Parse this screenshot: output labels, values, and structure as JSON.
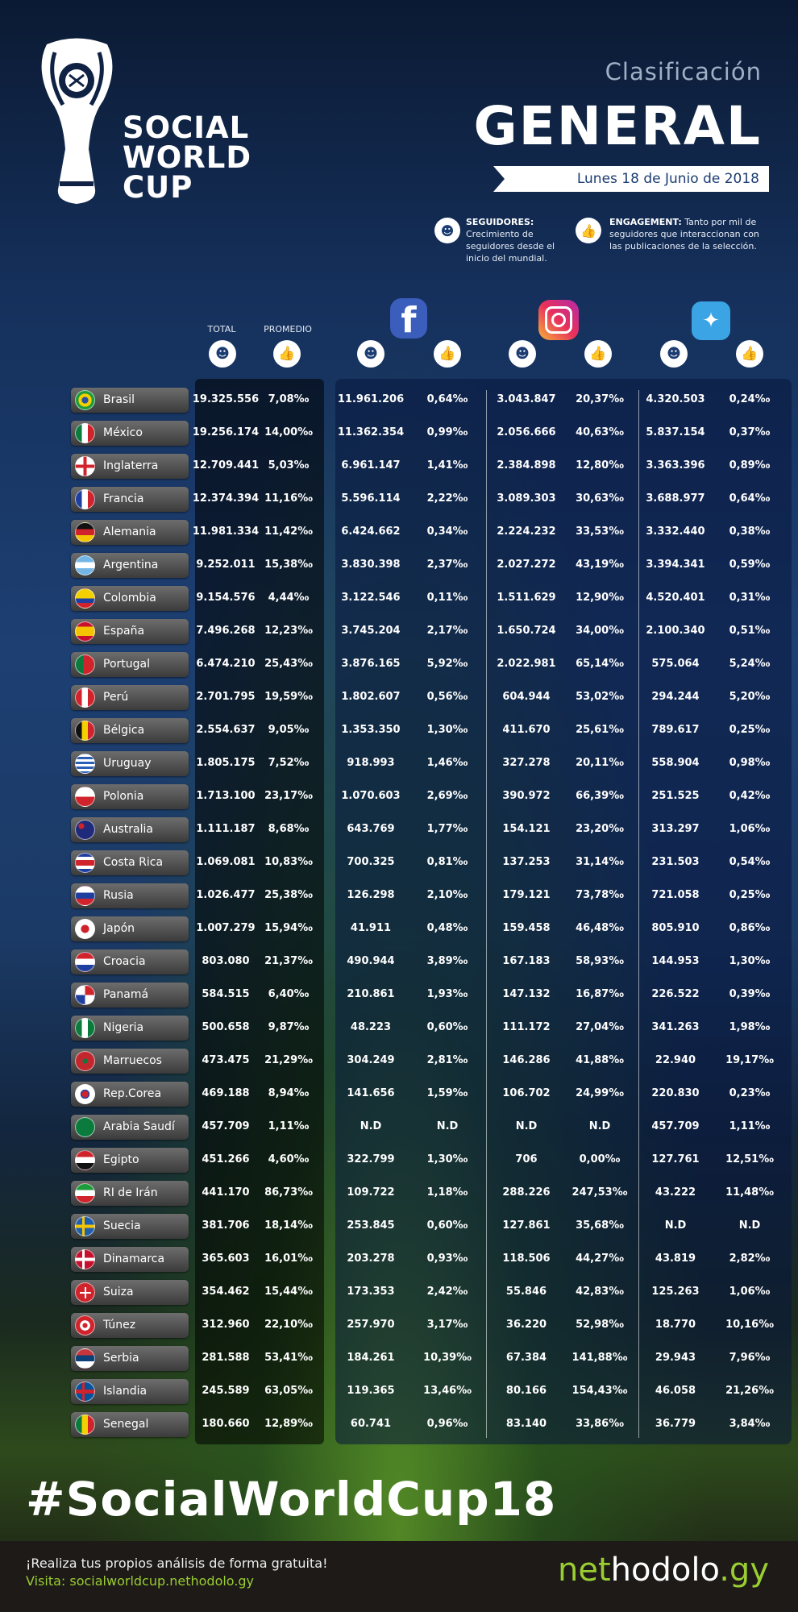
{
  "header": {
    "brand": [
      "SOCIAL",
      "WORLD",
      "CUP"
    ],
    "clasificacion": "Clasificación",
    "general": "GENERAL",
    "date": "Lunes 18 de Junio de 2018"
  },
  "legend": {
    "seguidores_title": "SEGUIDORES:",
    "seguidores_text": "Crecimiento de seguidores desde el inicio del mundial.",
    "engagement_title": "ENGAGEMENT:",
    "engagement_text": "Tanto por mil de seguidores que interaccionan con las publicaciones de la selección."
  },
  "columns": {
    "total": "TOTAL",
    "promedio": "PROMEDIO"
  },
  "icons": {
    "followers": "people-icon",
    "engagement": "thumbs-up-icon",
    "facebook": "facebook-logo",
    "instagram": "instagram-logo",
    "twitter": "twitter-logo"
  },
  "colors": {
    "accent_green": "#9acd32",
    "navy": "#1b3c72"
  },
  "rows": [
    {
      "country": "Brasil",
      "flag": "br",
      "total": "19.325.556",
      "prom": "7,08‰",
      "fb": "11.961.206",
      "fbe": "0,64‰",
      "ig": "3.043.847",
      "ige": "20,37‰",
      "tw": "4.320.503",
      "twe": "0,24‰"
    },
    {
      "country": "México",
      "flag": "mx",
      "total": "19.256.174",
      "prom": "14,00‰",
      "fb": "11.362.354",
      "fbe": "0,99‰",
      "ig": "2.056.666",
      "ige": "40,63‰",
      "tw": "5.837.154",
      "twe": "0,37‰"
    },
    {
      "country": "Inglaterra",
      "flag": "en",
      "total": "12.709.441",
      "prom": "5,03‰",
      "fb": "6.961.147",
      "fbe": "1,41‰",
      "ig": "2.384.898",
      "ige": "12,80‰",
      "tw": "3.363.396",
      "twe": "0,89‰"
    },
    {
      "country": "Francia",
      "flag": "fr",
      "total": "12.374.394",
      "prom": "11,16‰",
      "fb": "5.596.114",
      "fbe": "2,22‰",
      "ig": "3.089.303",
      "ige": "30,63‰",
      "tw": "3.688.977",
      "twe": "0,64‰"
    },
    {
      "country": "Alemania",
      "flag": "de",
      "total": "11.981.334",
      "prom": "11,42‰",
      "fb": "6.424.662",
      "fbe": "0,34‰",
      "ig": "2.224.232",
      "ige": "33,53‰",
      "tw": "3.332.440",
      "twe": "0,38‰"
    },
    {
      "country": "Argentina",
      "flag": "ar",
      "total": "9.252.011",
      "prom": "15,38‰",
      "fb": "3.830.398",
      "fbe": "2,37‰",
      "ig": "2.027.272",
      "ige": "43,19‰",
      "tw": "3.394.341",
      "twe": "0,59‰"
    },
    {
      "country": "Colombia",
      "flag": "co",
      "total": "9.154.576",
      "prom": "4,44‰",
      "fb": "3.122.546",
      "fbe": "0,11‰",
      "ig": "1.511.629",
      "ige": "12,90‰",
      "tw": "4.520.401",
      "twe": "0,31‰"
    },
    {
      "country": "España",
      "flag": "es",
      "total": "7.496.268",
      "prom": "12,23‰",
      "fb": "3.745.204",
      "fbe": "2,17‰",
      "ig": "1.650.724",
      "ige": "34,00‰",
      "tw": "2.100.340",
      "twe": "0,51‰"
    },
    {
      "country": "Portugal",
      "flag": "pt",
      "total": "6.474.210",
      "prom": "25,43‰",
      "fb": "3.876.165",
      "fbe": "5,92‰",
      "ig": "2.022.981",
      "ige": "65,14‰",
      "tw": "575.064",
      "twe": "5,24‰"
    },
    {
      "country": "Perú",
      "flag": "pe",
      "total": "2.701.795",
      "prom": "19,59‰",
      "fb": "1.802.607",
      "fbe": "0,56‰",
      "ig": "604.944",
      "ige": "53,02‰",
      "tw": "294.244",
      "twe": "5,20‰"
    },
    {
      "country": "Bélgica",
      "flag": "be",
      "total": "2.554.637",
      "prom": "9,05‰",
      "fb": "1.353.350",
      "fbe": "1,30‰",
      "ig": "411.670",
      "ige": "25,61‰",
      "tw": "789.617",
      "twe": "0,25‰"
    },
    {
      "country": "Uruguay",
      "flag": "uy",
      "total": "1.805.175",
      "prom": "7,52‰",
      "fb": "918.993",
      "fbe": "1,46‰",
      "ig": "327.278",
      "ige": "20,11‰",
      "tw": "558.904",
      "twe": "0,98‰"
    },
    {
      "country": "Polonia",
      "flag": "pl",
      "total": "1.713.100",
      "prom": "23,17‰",
      "fb": "1.070.603",
      "fbe": "2,69‰",
      "ig": "390.972",
      "ige": "66,39‰",
      "tw": "251.525",
      "twe": "0,42‰"
    },
    {
      "country": "Australia",
      "flag": "au",
      "total": "1.111.187",
      "prom": "8,68‰",
      "fb": "643.769",
      "fbe": "1,77‰",
      "ig": "154.121",
      "ige": "23,20‰",
      "tw": "313.297",
      "twe": "1,06‰"
    },
    {
      "country": "Costa Rica",
      "flag": "cr",
      "total": "1.069.081",
      "prom": "10,83‰",
      "fb": "700.325",
      "fbe": "0,81‰",
      "ig": "137.253",
      "ige": "31,14‰",
      "tw": "231.503",
      "twe": "0,54‰"
    },
    {
      "country": "Rusia",
      "flag": "ru",
      "total": "1.026.477",
      "prom": "25,38‰",
      "fb": "126.298",
      "fbe": "2,10‰",
      "ig": "179.121",
      "ige": "73,78‰",
      "tw": "721.058",
      "twe": "0,25‰"
    },
    {
      "country": "Japón",
      "flag": "jp",
      "total": "1.007.279",
      "prom": "15,94‰",
      "fb": "41.911",
      "fbe": "0,48‰",
      "ig": "159.458",
      "ige": "46,48‰",
      "tw": "805.910",
      "twe": "0,86‰"
    },
    {
      "country": "Croacia",
      "flag": "hr",
      "total": "803.080",
      "prom": "21,37‰",
      "fb": "490.944",
      "fbe": "3,89‰",
      "ig": "167.183",
      "ige": "58,93‰",
      "tw": "144.953",
      "twe": "1,30‰"
    },
    {
      "country": "Panamá",
      "flag": "pa",
      "total": "584.515",
      "prom": "6,40‰",
      "fb": "210.861",
      "fbe": "1,93‰",
      "ig": "147.132",
      "ige": "16,87‰",
      "tw": "226.522",
      "twe": "0,39‰"
    },
    {
      "country": "Nigeria",
      "flag": "ng",
      "total": "500.658",
      "prom": "9,87‰",
      "fb": "48.223",
      "fbe": "0,60‰",
      "ig": "111.172",
      "ige": "27,04‰",
      "tw": "341.263",
      "twe": "1,98‰"
    },
    {
      "country": "Marruecos",
      "flag": "ma",
      "total": "473.475",
      "prom": "21,29‰",
      "fb": "304.249",
      "fbe": "2,81‰",
      "ig": "146.286",
      "ige": "41,88‰",
      "tw": "22.940",
      "twe": "19,17‰"
    },
    {
      "country": "Rep.Corea",
      "flag": "kr",
      "total": "469.188",
      "prom": "8,94‰",
      "fb": "141.656",
      "fbe": "1,59‰",
      "ig": "106.702",
      "ige": "24,99‰",
      "tw": "220.830",
      "twe": "0,23‰"
    },
    {
      "country": "Arabia Saudí",
      "flag": "sa",
      "total": "457.709",
      "prom": "1,11‰",
      "fb": "N.D",
      "fbe": "N.D",
      "ig": "N.D",
      "ige": "N.D",
      "tw": "457.709",
      "twe": "1,11‰"
    },
    {
      "country": "Egipto",
      "flag": "eg",
      "total": "451.266",
      "prom": "4,60‰",
      "fb": "322.799",
      "fbe": "1,30‰",
      "ig": "706",
      "ige": "0,00‰",
      "tw": "127.761",
      "twe": "12,51‰"
    },
    {
      "country": "RI de Irán",
      "flag": "ir",
      "total": "441.170",
      "prom": "86,73‰",
      "fb": "109.722",
      "fbe": "1,18‰",
      "ig": "288.226",
      "ige": "247,53‰",
      "tw": "43.222",
      "twe": "11,48‰"
    },
    {
      "country": "Suecia",
      "flag": "se",
      "total": "381.706",
      "prom": "18,14‰",
      "fb": "253.845",
      "fbe": "0,60‰",
      "ig": "127.861",
      "ige": "35,68‰",
      "tw": "N.D",
      "twe": "N.D"
    },
    {
      "country": "Dinamarca",
      "flag": "dk",
      "total": "365.603",
      "prom": "16,01‰",
      "fb": "203.278",
      "fbe": "0,93‰",
      "ig": "118.506",
      "ige": "44,27‰",
      "tw": "43.819",
      "twe": "2,82‰"
    },
    {
      "country": "Suiza",
      "flag": "ch",
      "total": "354.462",
      "prom": "15,44‰",
      "fb": "173.353",
      "fbe": "2,42‰",
      "ig": "55.846",
      "ige": "42,83‰",
      "tw": "125.263",
      "twe": "1,06‰"
    },
    {
      "country": "Túnez",
      "flag": "tn",
      "total": "312.960",
      "prom": "22,10‰",
      "fb": "257.970",
      "fbe": "3,17‰",
      "ig": "36.220",
      "ige": "52,98‰",
      "tw": "18.770",
      "twe": "10,16‰"
    },
    {
      "country": "Serbia",
      "flag": "rs",
      "total": "281.588",
      "prom": "53,41‰",
      "fb": "184.261",
      "fbe": "10,39‰",
      "ig": "67.384",
      "ige": "141,88‰",
      "tw": "29.943",
      "twe": "7,96‰"
    },
    {
      "country": "Islandia",
      "flag": "is",
      "total": "245.589",
      "prom": "63,05‰",
      "fb": "119.365",
      "fbe": "13,46‰",
      "ig": "80.166",
      "ige": "154,43‰",
      "tw": "46.058",
      "twe": "21,26‰"
    },
    {
      "country": "Senegal",
      "flag": "sn",
      "total": "180.660",
      "prom": "12,89‰",
      "fb": "60.741",
      "fbe": "0,96‰",
      "ig": "83.140",
      "ige": "33,86‰",
      "tw": "36.779",
      "twe": "3,84‰"
    }
  ],
  "footer": {
    "hashtag": "#SocialWorldCup18",
    "line1": "¡Realiza tus propios análisis de forma gratuita!",
    "line2": "Visita: socialworldcup.nethodolo.gy",
    "logo_a": "net",
    "logo_b": "hodolo",
    "logo_c": ".gy"
  }
}
